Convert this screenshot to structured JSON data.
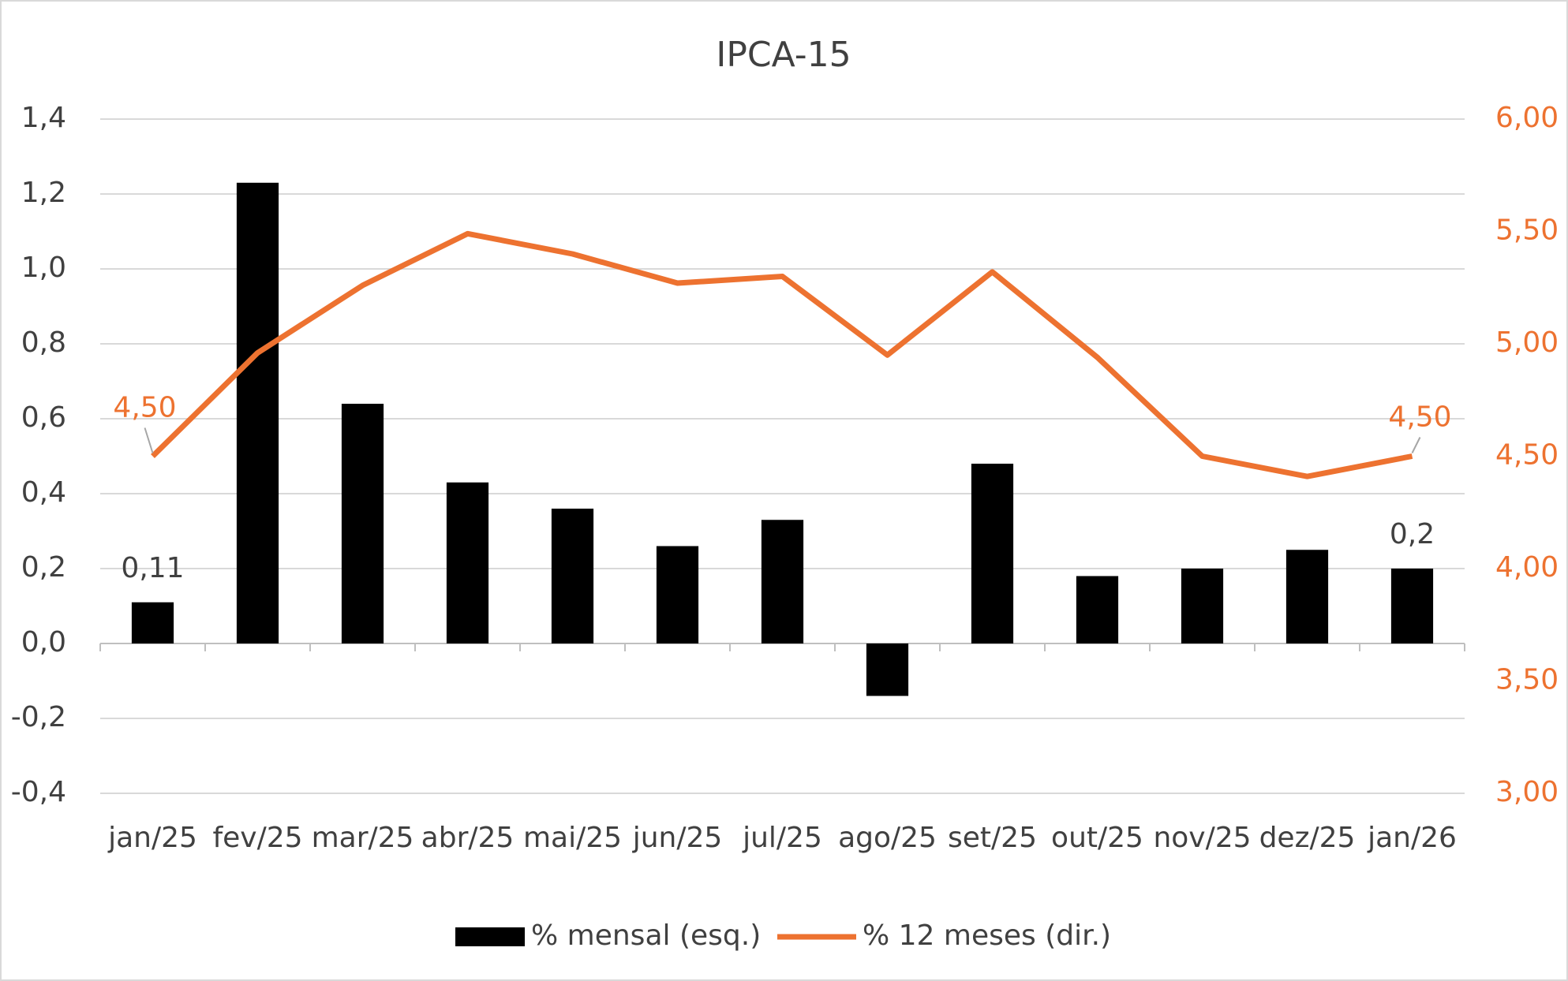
{
  "chart_data": {
    "type": "bar-line",
    "title": "IPCA-15",
    "categories": [
      "jan/25",
      "fev/25",
      "mar/25",
      "abr/25",
      "mai/25",
      "jun/25",
      "jul/25",
      "ago/25",
      "set/25",
      "out/25",
      "nov/25",
      "dez/25",
      "jan/26"
    ],
    "series": [
      {
        "name": "% mensal (esq.)",
        "type": "bar",
        "color": "#000000",
        "axis": "y",
        "values": [
          0.11,
          1.23,
          0.64,
          0.43,
          0.36,
          0.26,
          0.33,
          -0.14,
          0.48,
          0.18,
          0.2,
          0.25,
          0.2
        ],
        "value_labels": [
          "0,11",
          null,
          null,
          null,
          null,
          null,
          null,
          null,
          null,
          null,
          null,
          null,
          "0,2"
        ]
      },
      {
        "name": "% 12 meses (dir.)",
        "type": "line",
        "color": "#ed7230",
        "axis": "y2",
        "values": [
          4.5,
          4.96,
          5.26,
          5.49,
          5.4,
          5.27,
          5.3,
          4.95,
          5.32,
          4.94,
          4.5,
          4.41,
          4.5
        ],
        "value_labels": [
          "4,50",
          null,
          null,
          null,
          null,
          null,
          null,
          null,
          null,
          null,
          null,
          null,
          "4,50"
        ]
      }
    ],
    "ylim": [
      -0.4,
      1.4
    ],
    "yticks": [
      {
        "value": -0.4,
        "label": "-0,4"
      },
      {
        "value": -0.2,
        "label": "-0,2"
      },
      {
        "value": 0,
        "label": "0,0"
      },
      {
        "value": 0.2,
        "label": "0,2"
      },
      {
        "value": 0.4,
        "label": "0,4"
      },
      {
        "value": 0.6,
        "label": "0,6"
      },
      {
        "value": 0.8,
        "label": "0,8"
      },
      {
        "value": 1.0,
        "label": "1,0"
      },
      {
        "value": 1.2,
        "label": "1,2"
      },
      {
        "value": 1.4,
        "label": "1,4"
      }
    ],
    "y2lim": [
      3.0,
      6.0
    ],
    "y2ticks": [
      {
        "value": 3.0,
        "label": "3,00"
      },
      {
        "value": 3.5,
        "label": "3,50"
      },
      {
        "value": 4.0,
        "label": "4,00"
      },
      {
        "value": 4.5,
        "label": "4,50"
      },
      {
        "value": 5.0,
        "label": "5,00"
      },
      {
        "value": 5.5,
        "label": "5,50"
      },
      {
        "value": 6.0,
        "label": "6,00"
      }
    ],
    "grid": true,
    "legend": "bottom"
  }
}
